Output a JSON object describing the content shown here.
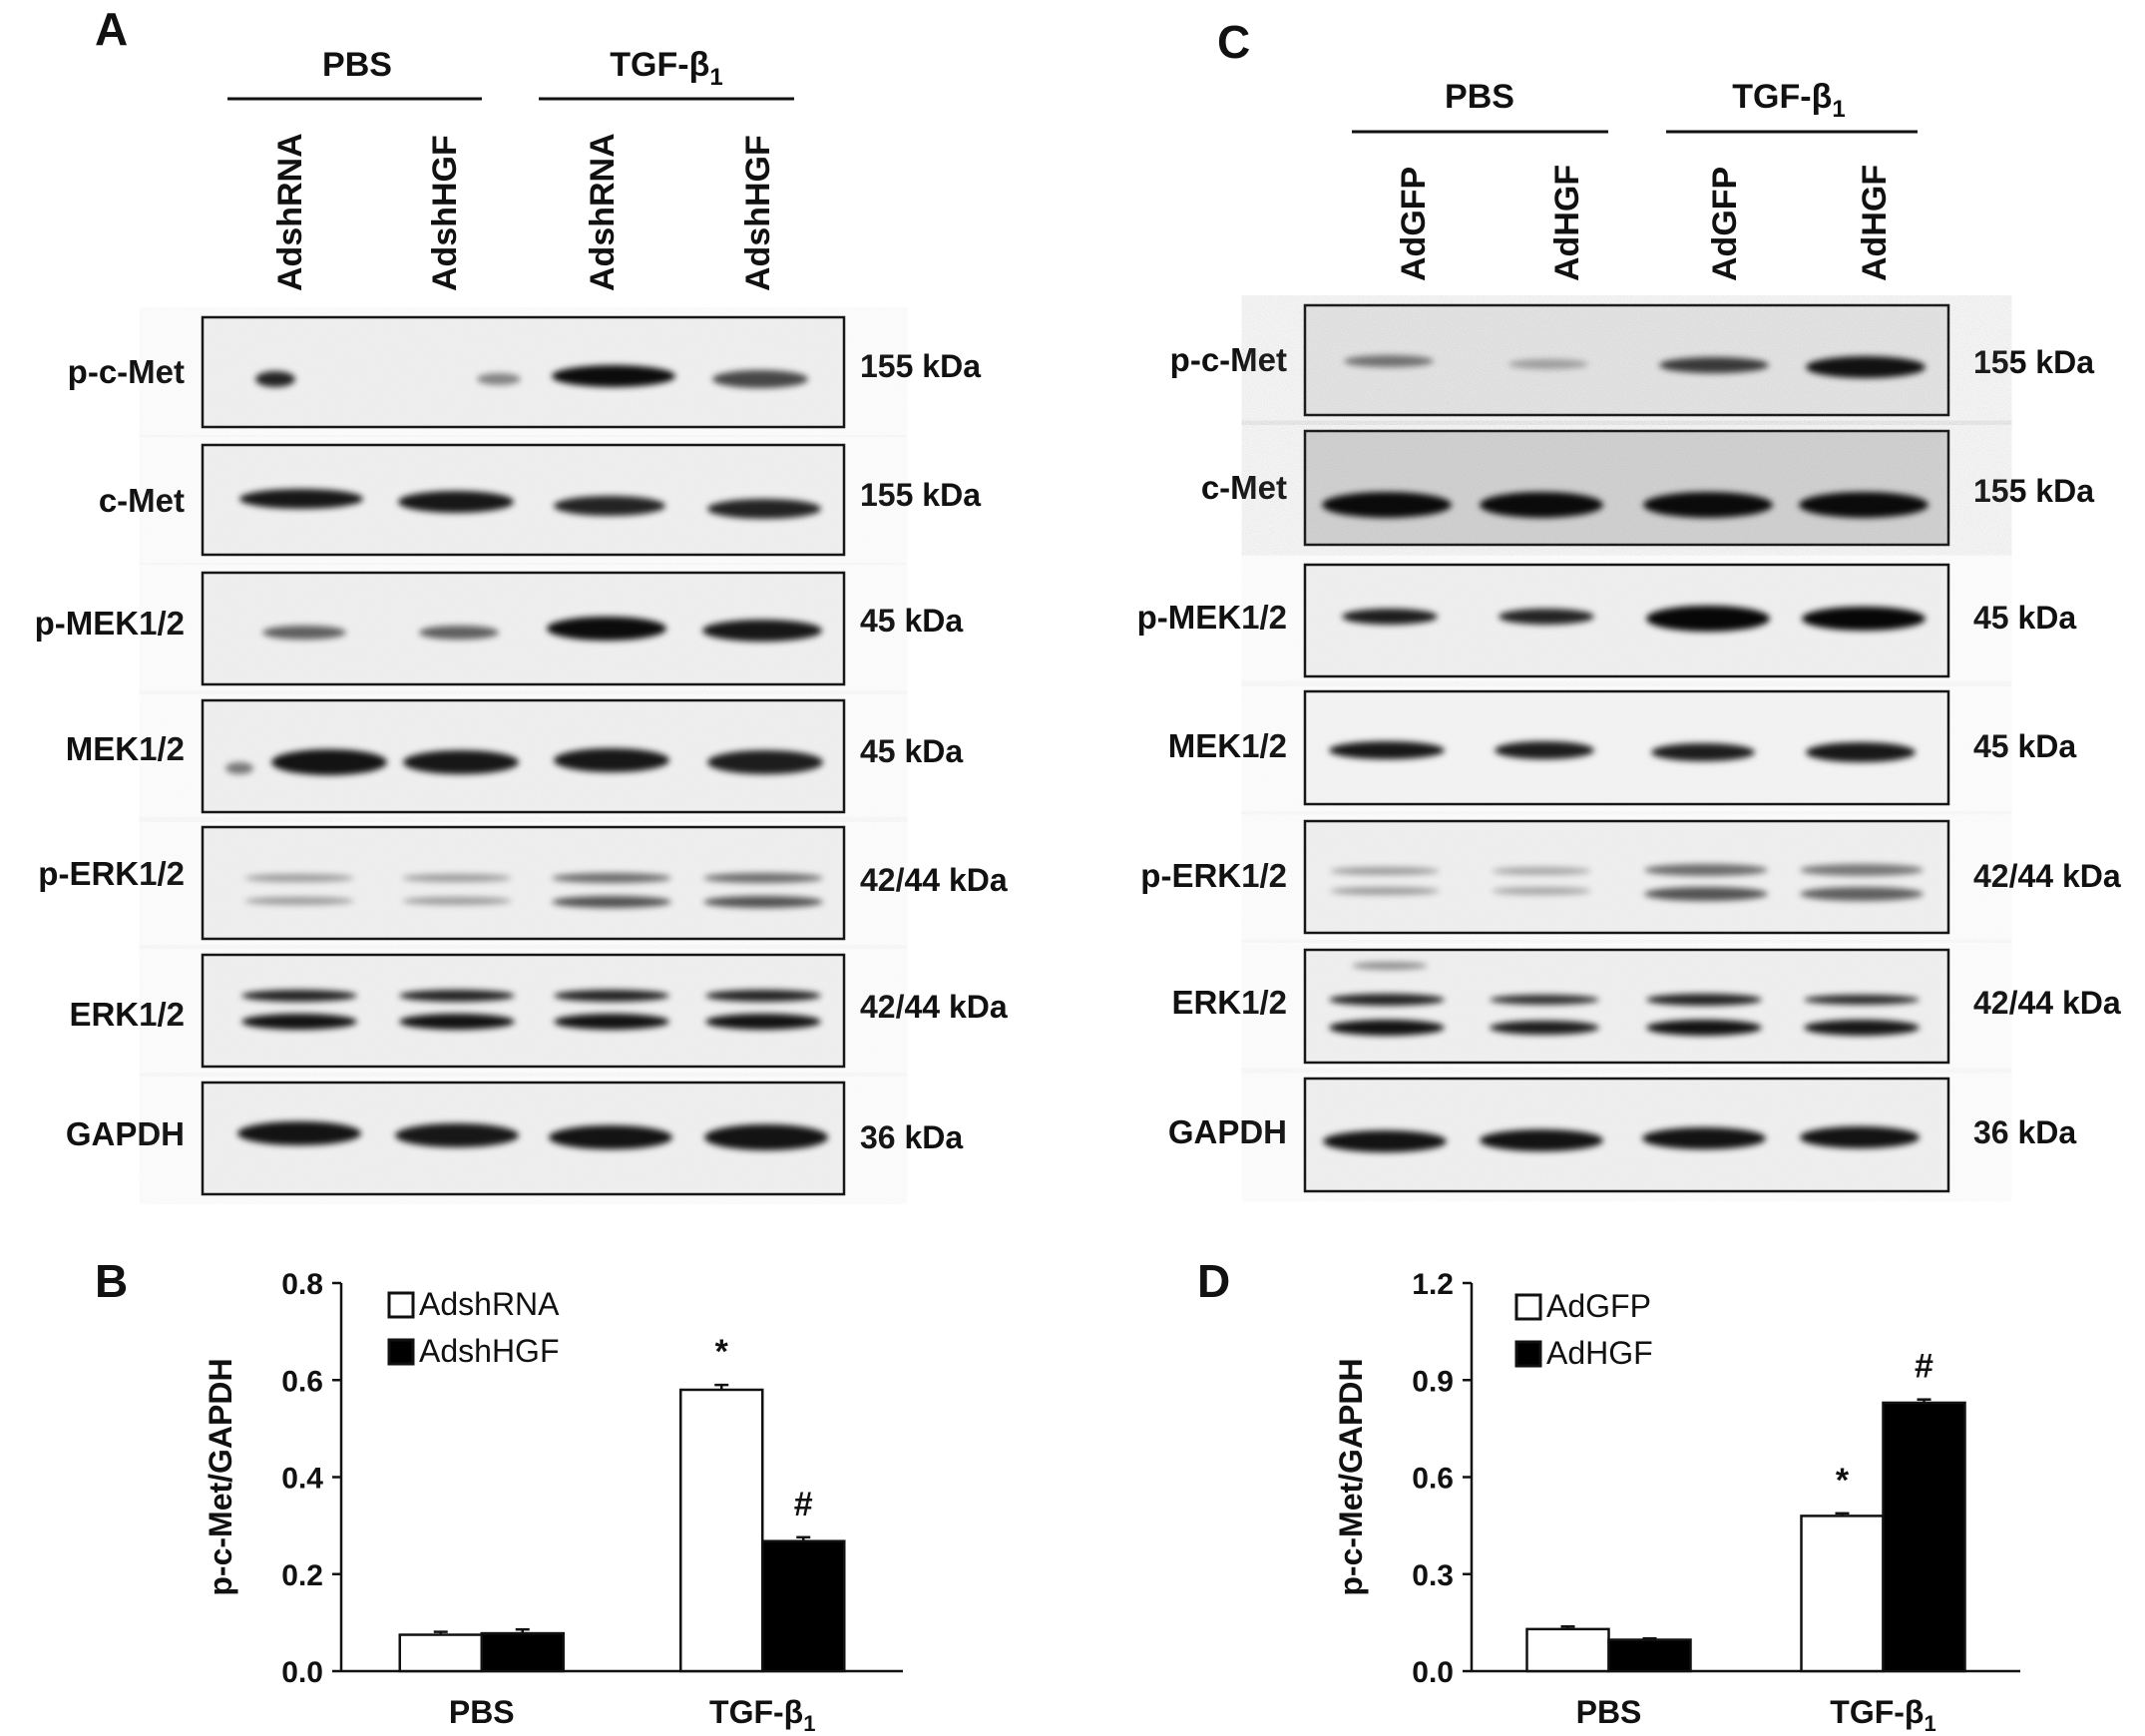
{
  "panels": {
    "A": {
      "letter": "A",
      "groups": [
        "PBS",
        "TGF-β",
        "1"
      ],
      "lanes": [
        "AdshRNA",
        "AdshHGF",
        "AdshRNA",
        "AdshHGF"
      ],
      "blots": [
        {
          "label": "p-c-Met",
          "kda": "155 kDa"
        },
        {
          "label": "c-Met",
          "kda": "155 kDa"
        },
        {
          "label": "p-MEK1/2",
          "kda": "45 kDa"
        },
        {
          "label": "MEK1/2",
          "kda": "45 kDa"
        },
        {
          "label": "p-ERK1/2",
          "kda": "42/44 kDa"
        },
        {
          "label": "ERK1/2",
          "kda": "42/44 kDa"
        },
        {
          "label": "GAPDH",
          "kda": "36 kDa"
        }
      ]
    },
    "C": {
      "letter": "C",
      "groups": [
        "PBS",
        "TGF-β",
        "1"
      ],
      "lanes": [
        "AdGFP",
        "AdHGF",
        "AdGFP",
        "AdHGF"
      ],
      "blots": [
        {
          "label": "p-c-Met",
          "kda": "155 kDa"
        },
        {
          "label": "c-Met",
          "kda": "155 kDa"
        },
        {
          "label": "p-MEK1/2",
          "kda": "45 kDa"
        },
        {
          "label": "MEK1/2",
          "kda": "45 kDa"
        },
        {
          "label": "p-ERK1/2",
          "kda": "42/44 kDa"
        },
        {
          "label": "ERK1/2",
          "kda": "42/44 kDa"
        },
        {
          "label": "GAPDH",
          "kda": "36 kDa"
        }
      ]
    }
  },
  "chart_data": [
    {
      "panel": "B",
      "type": "bar",
      "ylabel": "p-c-Met/GAPDH",
      "categories": [
        "PBS",
        "TGF-β1"
      ],
      "category_parts": [
        [
          "PBS",
          ""
        ],
        [
          "TGF-β",
          "1"
        ]
      ],
      "ylim": [
        0,
        0.8
      ],
      "yticks": [
        "0.0",
        "0.2",
        "0.4",
        "0.6",
        "0.8"
      ],
      "ytick_values": [
        0,
        0.2,
        0.4,
        0.6,
        0.8
      ],
      "legend_position": "top-left",
      "series": [
        {
          "name": "AdshRNA",
          "color": "#ffffff",
          "values": [
            0.075,
            0.58
          ],
          "errors": [
            0.006,
            0.01
          ],
          "labels": [
            "",
            "*"
          ]
        },
        {
          "name": "AdshHGF",
          "color": "#000000",
          "values": [
            0.078,
            0.268
          ],
          "errors": [
            0.008,
            0.008
          ],
          "labels": [
            "",
            "#"
          ]
        }
      ]
    },
    {
      "panel": "D",
      "type": "bar",
      "ylabel": "p-c-Met/GAPDH",
      "categories": [
        "PBS",
        "TGF-β1"
      ],
      "category_parts": [
        [
          "PBS",
          ""
        ],
        [
          "TGF-β",
          "1"
        ]
      ],
      "ylim": [
        0,
        1.2
      ],
      "yticks": [
        "0.0",
        "0.3",
        "0.6",
        "0.9",
        "1.2"
      ],
      "ytick_values": [
        0,
        0.3,
        0.6,
        0.9,
        1.2
      ],
      "legend_position": "top-left",
      "series": [
        {
          "name": "AdGFP",
          "color": "#ffffff",
          "values": [
            0.13,
            0.48
          ],
          "errors": [
            0.008,
            0.008
          ],
          "labels": [
            "",
            "*"
          ]
        },
        {
          "name": "AdHGF",
          "color": "#000000",
          "values": [
            0.097,
            0.83
          ],
          "errors": [
            0.004,
            0.01
          ],
          "labels": [
            "",
            "#"
          ]
        }
      ]
    }
  ]
}
